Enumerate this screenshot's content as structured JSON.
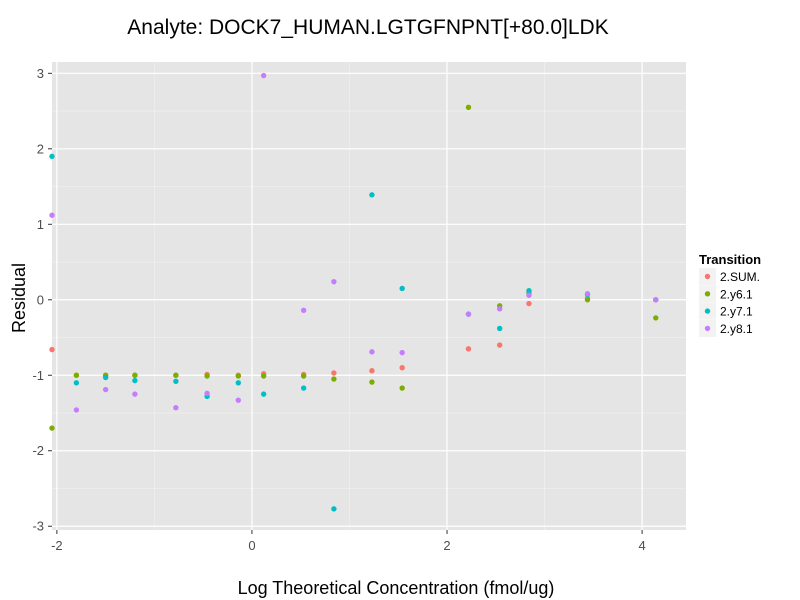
{
  "chart_data": {
    "type": "scatter",
    "title": "Analyte: DOCK7_HUMAN.LGTGFNPNT[+80.0]LDK",
    "xlabel": "Log Theoretical Concentration (fmol/ug)",
    "ylabel": "Residual",
    "xlim": [
      -2.05,
      4.45
    ],
    "ylim": [
      -3.05,
      3.15
    ],
    "x_ticks": [
      -2,
      0,
      2,
      4
    ],
    "y_ticks": [
      -3,
      -2,
      -1,
      0,
      1,
      2,
      3
    ],
    "x_tick_labels": [
      "-2",
      "0",
      "2",
      "4"
    ],
    "y_tick_labels": [
      "-3",
      "-2",
      "-1",
      "0",
      "1",
      "2",
      "3"
    ],
    "grid": true,
    "legend_position": "right",
    "legend_title": "Transition",
    "background_color": "#e5e5e5",
    "grid_color": "#ffffff",
    "series": [
      {
        "name": "2.SUM.",
        "color": "#f8766d",
        "points": [
          [
            -2.05,
            -0.66
          ],
          [
            -1.8,
            -1.0
          ],
          [
            -1.5,
            -1.0
          ],
          [
            -1.2,
            -1.0
          ],
          [
            -0.78,
            -1.0
          ],
          [
            -0.46,
            -0.99
          ],
          [
            -0.14,
            -1.0
          ],
          [
            0.12,
            -0.98
          ],
          [
            0.53,
            -0.99
          ],
          [
            0.84,
            -0.97
          ],
          [
            1.23,
            -0.94
          ],
          [
            1.54,
            -0.9
          ],
          [
            2.22,
            -0.65
          ],
          [
            2.54,
            -0.6
          ],
          [
            2.84,
            -0.05
          ],
          [
            3.44,
            0.02
          ],
          [
            4.14,
            0.0
          ]
        ]
      },
      {
        "name": "2.y6.1",
        "color": "#7cae00",
        "points": [
          [
            -2.05,
            -1.7
          ],
          [
            -1.8,
            -1.0
          ],
          [
            -1.5,
            -1.0
          ],
          [
            -1.2,
            -1.0
          ],
          [
            -0.78,
            -1.0
          ],
          [
            -0.46,
            -1.01
          ],
          [
            -0.14,
            -1.01
          ],
          [
            0.12,
            -1.01
          ],
          [
            0.53,
            -1.01
          ],
          [
            0.84,
            -1.05
          ],
          [
            1.23,
            -1.09
          ],
          [
            1.54,
            -1.17
          ],
          [
            2.22,
            2.55
          ],
          [
            2.54,
            -0.08
          ],
          [
            2.84,
            0.09
          ],
          [
            3.44,
            0.0
          ],
          [
            4.14,
            -0.24
          ]
        ]
      },
      {
        "name": "2.y7.1",
        "color": "#00bfc4",
        "points": [
          [
            -2.05,
            1.9
          ],
          [
            -1.8,
            -1.1
          ],
          [
            -1.5,
            -1.03
          ],
          [
            -1.2,
            -1.07
          ],
          [
            -0.78,
            -1.08
          ],
          [
            -0.46,
            -1.28
          ],
          [
            -0.14,
            -1.1
          ],
          [
            0.12,
            -1.25
          ],
          [
            0.53,
            -1.17
          ],
          [
            0.84,
            -2.77
          ],
          [
            1.23,
            1.39
          ],
          [
            1.54,
            0.15
          ],
          [
            2.22,
            -0.19
          ],
          [
            2.54,
            -0.38
          ],
          [
            2.84,
            0.12
          ],
          [
            3.44,
            0.07
          ],
          [
            4.14,
            0.0
          ]
        ]
      },
      {
        "name": "2.y8.1",
        "color": "#c77cff",
        "points": [
          [
            -2.05,
            1.12
          ],
          [
            -1.8,
            -1.46
          ],
          [
            -1.5,
            -1.19
          ],
          [
            -1.2,
            -1.25
          ],
          [
            -0.78,
            -1.43
          ],
          [
            -0.46,
            -1.24
          ],
          [
            -0.14,
            -1.33
          ],
          [
            0.12,
            2.97
          ],
          [
            0.53,
            -0.14
          ],
          [
            0.84,
            0.24
          ],
          [
            1.23,
            -0.69
          ],
          [
            1.54,
            -0.7
          ],
          [
            2.22,
            -0.19
          ],
          [
            2.54,
            -0.12
          ],
          [
            2.84,
            0.06
          ],
          [
            3.44,
            0.08
          ],
          [
            4.14,
            0.0
          ]
        ]
      }
    ]
  }
}
